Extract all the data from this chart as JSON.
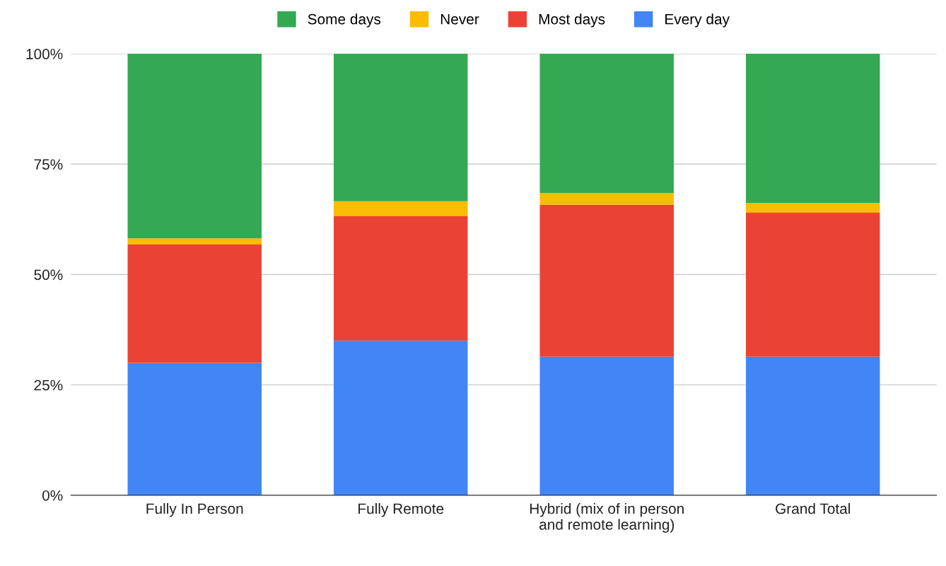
{
  "chart_data": {
    "type": "bar",
    "stacked": true,
    "categories": [
      "Fully In Person",
      "Fully Remote",
      "Hybrid (mix of in person and remote learning)",
      "Grand Total"
    ],
    "series": [
      {
        "name": "Every day",
        "color": "#4285f4",
        "values": [
          30,
          35,
          31.4,
          31.4
        ]
      },
      {
        "name": "Most days",
        "color": "#ea4335",
        "values": [
          26.8,
          28.2,
          34.4,
          32.6
        ]
      },
      {
        "name": "Never",
        "color": "#fbbc04",
        "values": [
          1.4,
          3.4,
          2.7,
          2.2
        ]
      },
      {
        "name": "Some days",
        "color": "#34a853",
        "values": [
          41.8,
          33.4,
          31.5,
          33.8
        ]
      }
    ],
    "ylim": [
      0,
      100
    ],
    "yticks": [
      {
        "value": 0,
        "label": "0%"
      },
      {
        "value": 25,
        "label": "25%"
      },
      {
        "value": 50,
        "label": "50%"
      },
      {
        "value": 75,
        "label": "75%"
      },
      {
        "value": 100,
        "label": "100%"
      }
    ],
    "grid": "y",
    "legend": "top"
  }
}
